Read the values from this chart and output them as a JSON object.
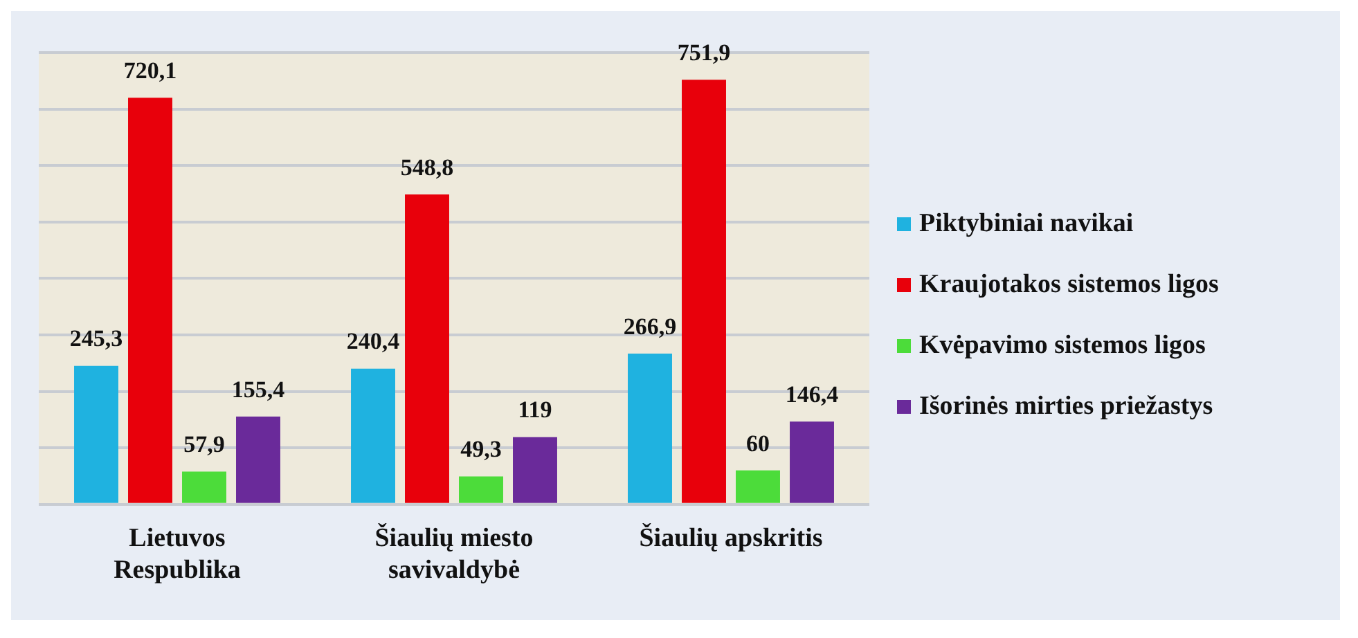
{
  "chart_data": {
    "type": "bar",
    "categories": [
      "Lietuvos Respublika",
      "Šiaulių miesto savivaldybė",
      "Šiaulių apskritis"
    ],
    "series": [
      {
        "name": "Piktybiniai navikai",
        "color": "#1fb2e0",
        "values": [
          245.3,
          240.4,
          266.9
        ],
        "value_labels": [
          "245,3",
          "240,4",
          "266,9"
        ]
      },
      {
        "name": "Kraujotakos sistemos ligos",
        "color": "#e8000b",
        "values": [
          720.1,
          548.8,
          751.9
        ],
        "value_labels": [
          "720,1",
          "548,8",
          "751,9"
        ]
      },
      {
        "name": "Kvėpavimo sistemos ligos",
        "color": "#4cdc3a",
        "values": [
          57.9,
          49.3,
          60
        ],
        "value_labels": [
          "57,9",
          "49,3",
          "60"
        ]
      },
      {
        "name": "Išorinės mirties priežastys",
        "color": "#6a2a9a",
        "values": [
          155.4,
          119,
          146.4
        ],
        "value_labels": [
          "155,4",
          "119",
          "146,4"
        ]
      }
    ],
    "ylim": [
      0,
      800
    ],
    "yticks": [
      {
        "value": 0,
        "label": null
      },
      {
        "value": 100,
        "label": null
      },
      {
        "value": 200,
        "label": null
      },
      {
        "value": 300,
        "label": null
      },
      {
        "value": 400,
        "label": null
      },
      {
        "value": 500,
        "label": null
      },
      {
        "value": 600,
        "label": null
      },
      {
        "value": 700,
        "label": null
      },
      {
        "value": 800,
        "label": null
      }
    ],
    "tick_labels": "x",
    "grid": "y",
    "legend": "right"
  }
}
